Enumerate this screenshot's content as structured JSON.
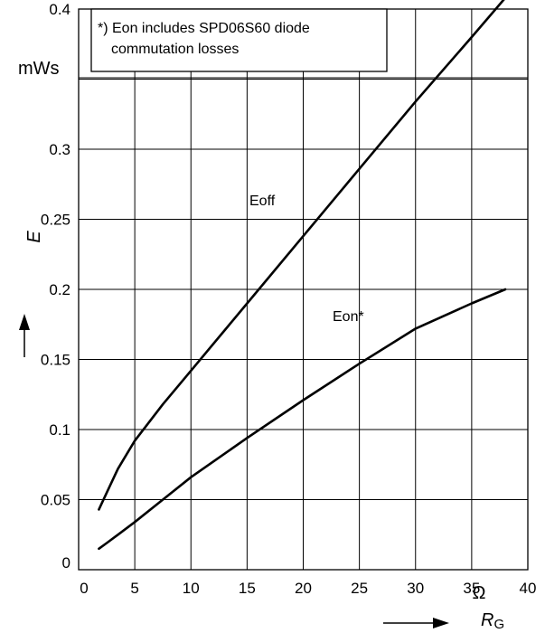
{
  "chart_data": {
    "type": "line",
    "xlabel": "R",
    "xlabel_sub": "G",
    "xunit": "Ω",
    "ylabel": "E",
    "yunit": "mWs",
    "xlim": [
      0,
      40
    ],
    "ylim": [
      0,
      0.4
    ],
    "x_ticks": [
      "0",
      "5",
      "10",
      "15",
      "20",
      "25",
      "30",
      "35",
      "40"
    ],
    "y_ticks": [
      "0",
      "0.05",
      "0.1",
      "0.15",
      "0.2",
      "0.25",
      "0.3",
      "",
      "0.4"
    ],
    "grid": true,
    "note_lines": [
      "*) Eon includes SPD06S60 diode",
      "commutation losses"
    ],
    "series": [
      {
        "name": "Eoff",
        "x": [
          1.8,
          2.5,
          3.5,
          5,
          7.5,
          10,
          15,
          20,
          25,
          30,
          35,
          38
        ],
        "y": [
          0.043,
          0.055,
          0.072,
          0.092,
          0.118,
          0.142,
          0.19,
          0.238,
          0.286,
          0.334,
          0.38,
          0.408
        ]
      },
      {
        "name": "Eon*",
        "x": [
          1.8,
          2.5,
          3.5,
          5,
          7.5,
          10,
          15,
          20,
          25,
          30,
          35,
          38
        ],
        "y": [
          0.015,
          0.019,
          0.025,
          0.034,
          0.05,
          0.066,
          0.094,
          0.121,
          0.147,
          0.172,
          0.19,
          0.2
        ]
      }
    ]
  }
}
